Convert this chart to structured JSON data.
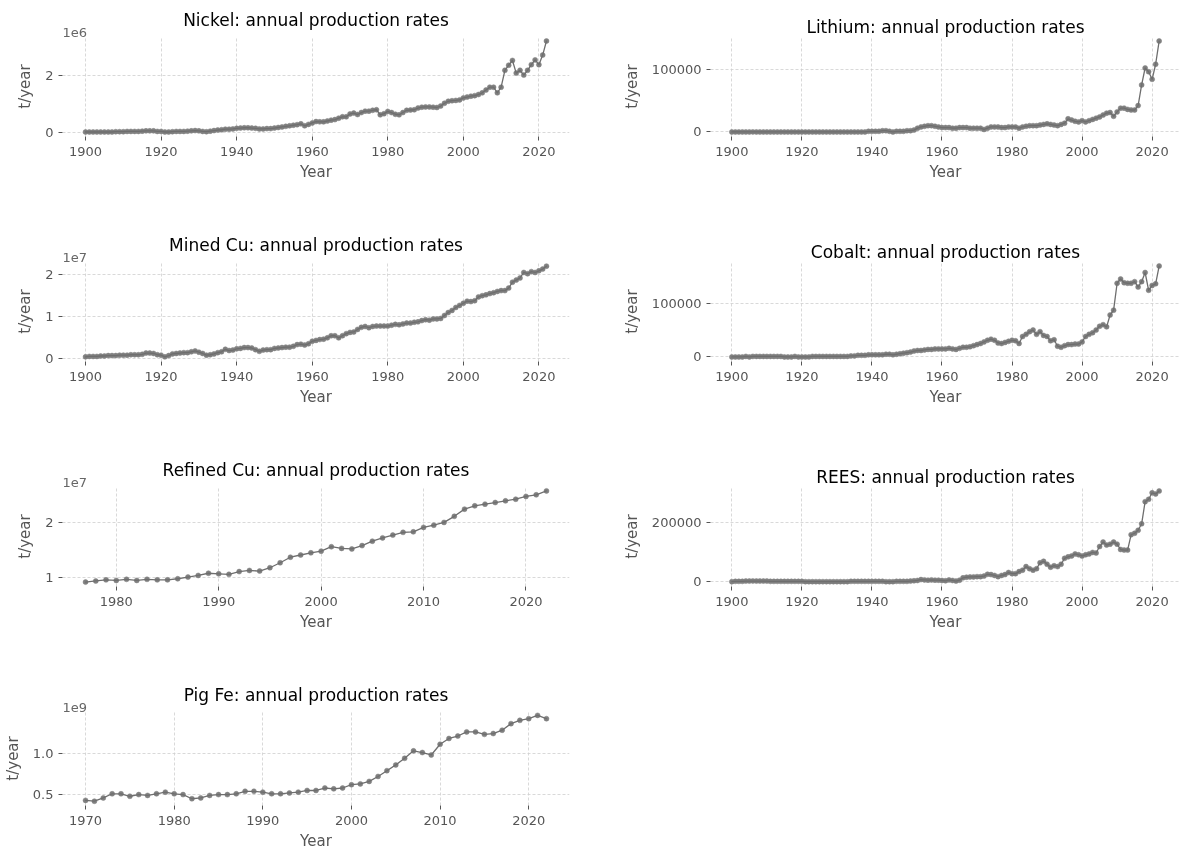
{
  "chart_data": [
    {
      "type": "line",
      "title": "Nickel: annual production rates",
      "xlabel": "Year",
      "ylabel": "t/year",
      "annotations": [
        "1e6"
      ],
      "marker": "circle",
      "grid": true,
      "xlim": [
        1893.9,
        2028.1
      ],
      "ylim": [
        -0.15,
        3.4
      ],
      "xticks": [
        1900,
        1920,
        1940,
        1960,
        1980,
        2000,
        2020
      ],
      "yticks": [
        0,
        2
      ],
      "x": [
        1900,
        1901,
        1902,
        1903,
        1904,
        1905,
        1906,
        1907,
        1908,
        1909,
        1910,
        1911,
        1912,
        1913,
        1914,
        1915,
        1916,
        1917,
        1918,
        1919,
        1920,
        1921,
        1922,
        1923,
        1924,
        1925,
        1926,
        1927,
        1928,
        1929,
        1930,
        1931,
        1932,
        1933,
        1934,
        1935,
        1936,
        1937,
        1938,
        1939,
        1940,
        1941,
        1942,
        1943,
        1944,
        1945,
        1946,
        1947,
        1948,
        1949,
        1950,
        1951,
        1952,
        1953,
        1954,
        1955,
        1956,
        1957,
        1958,
        1959,
        1960,
        1961,
        1962,
        1963,
        1964,
        1965,
        1966,
        1967,
        1968,
        1969,
        1970,
        1971,
        1972,
        1973,
        1974,
        1975,
        1976,
        1977,
        1978,
        1979,
        1980,
        1981,
        1982,
        1983,
        1984,
        1985,
        1986,
        1987,
        1988,
        1989,
        1990,
        1991,
        1992,
        1993,
        1994,
        1995,
        1996,
        1997,
        1998,
        1999,
        2000,
        2001,
        2002,
        2003,
        2004,
        2005,
        2006,
        2007,
        2008,
        2009,
        2010,
        2011,
        2012,
        2013,
        2014,
        2015,
        2016,
        2017,
        2018,
        2019,
        2020,
        2021,
        2022
      ],
      "series": [
        {
          "color": "#808080",
          "values": [
            0.01,
            0.01,
            0.01,
            0.01,
            0.01,
            0.01,
            0.01,
            0.01,
            0.02,
            0.02,
            0.02,
            0.03,
            0.03,
            0.03,
            0.03,
            0.04,
            0.05,
            0.05,
            0.05,
            0.03,
            0.03,
            0.01,
            0.01,
            0.02,
            0.03,
            0.03,
            0.03,
            0.04,
            0.05,
            0.06,
            0.05,
            0.03,
            0.02,
            0.04,
            0.06,
            0.08,
            0.09,
            0.11,
            0.11,
            0.12,
            0.14,
            0.15,
            0.16,
            0.16,
            0.15,
            0.14,
            0.12,
            0.12,
            0.13,
            0.13,
            0.15,
            0.17,
            0.19,
            0.21,
            0.23,
            0.25,
            0.27,
            0.3,
            0.23,
            0.28,
            0.33,
            0.38,
            0.37,
            0.37,
            0.4,
            0.43,
            0.45,
            0.5,
            0.55,
            0.55,
            0.65,
            0.68,
            0.63,
            0.7,
            0.75,
            0.75,
            0.78,
            0.8,
            0.62,
            0.66,
            0.74,
            0.7,
            0.64,
            0.62,
            0.7,
            0.78,
            0.79,
            0.8,
            0.86,
            0.89,
            0.9,
            0.9,
            0.89,
            0.88,
            0.93,
            1.03,
            1.1,
            1.12,
            1.13,
            1.15,
            1.22,
            1.25,
            1.28,
            1.3,
            1.34,
            1.4,
            1.5,
            1.6,
            1.6,
            1.4,
            1.6,
            2.2,
            2.38,
            2.55,
            2.1,
            2.2,
            2.03,
            2.2,
            2.4,
            2.57,
            2.4,
            2.74,
            3.24
          ]
        }
      ]
    },
    {
      "type": "line",
      "title": "Lithium: annual production rates",
      "xlabel": "Year",
      "ylabel": "t/year",
      "marker": "circle",
      "grid": true,
      "xlim": [
        1893.9,
        2028.1
      ],
      "ylim": [
        -7250,
        152250
      ],
      "xticks": [
        1900,
        1920,
        1940,
        1960,
        1980,
        2000,
        2020
      ],
      "yticks": [
        0,
        100000
      ],
      "x": [
        1900,
        1901,
        1902,
        1903,
        1904,
        1905,
        1906,
        1907,
        1908,
        1909,
        1910,
        1911,
        1912,
        1913,
        1914,
        1915,
        1916,
        1917,
        1918,
        1919,
        1920,
        1921,
        1922,
        1923,
        1924,
        1925,
        1926,
        1927,
        1928,
        1929,
        1930,
        1931,
        1932,
        1933,
        1934,
        1935,
        1936,
        1937,
        1938,
        1939,
        1940,
        1941,
        1942,
        1943,
        1944,
        1945,
        1946,
        1947,
        1948,
        1949,
        1950,
        1951,
        1952,
        1953,
        1954,
        1955,
        1956,
        1957,
        1958,
        1959,
        1960,
        1961,
        1962,
        1963,
        1964,
        1965,
        1966,
        1967,
        1968,
        1969,
        1970,
        1971,
        1972,
        1973,
        1974,
        1975,
        1976,
        1977,
        1978,
        1979,
        1980,
        1981,
        1982,
        1983,
        1984,
        1985,
        1986,
        1987,
        1988,
        1989,
        1990,
        1991,
        1992,
        1993,
        1994,
        1995,
        1996,
        1997,
        1998,
        1999,
        2000,
        2001,
        2002,
        2003,
        2004,
        2005,
        2006,
        2007,
        2008,
        2009,
        2010,
        2011,
        2012,
        2013,
        2014,
        2015,
        2016,
        2017,
        2018,
        2019,
        2020,
        2021,
        2022
      ],
      "series": [
        {
          "color": "#808080",
          "values": [
            0,
            0,
            0,
            0,
            0,
            0,
            0,
            0,
            0,
            0,
            0,
            0,
            0,
            0,
            0,
            0,
            0,
            0,
            0,
            0,
            0,
            0,
            0,
            0,
            0,
            0,
            0,
            0,
            0,
            0,
            0,
            0,
            0,
            0,
            0,
            0,
            0,
            0,
            0,
            1000,
            1000,
            1000,
            1000,
            2000,
            2000,
            1000,
            0,
            1000,
            1000,
            1000,
            2000,
            2000,
            3000,
            6000,
            8000,
            9000,
            10000,
            10000,
            9000,
            8000,
            7000,
            7000,
            7000,
            6000,
            6000,
            7000,
            7000,
            7000,
            6000,
            6000,
            6000,
            6000,
            4000,
            6000,
            8000,
            8000,
            8000,
            7000,
            7000,
            8000,
            8000,
            8000,
            6000,
            8000,
            9000,
            10000,
            10000,
            10000,
            11000,
            12000,
            13000,
            12000,
            11000,
            10000,
            12000,
            14000,
            21000,
            19000,
            17000,
            16000,
            18000,
            16000,
            18000,
            20000,
            22000,
            24000,
            27000,
            30000,
            31000,
            25000,
            32000,
            38000,
            38000,
            36000,
            35000,
            35000,
            42000,
            75000,
            102000,
            96000,
            84000,
            108000,
            145000
          ]
        }
      ]
    },
    {
      "type": "line",
      "title": "Mined Cu: annual production rates",
      "xlabel": "Year",
      "ylabel": "t/year",
      "annotations": [
        "1e7"
      ],
      "marker": "circle",
      "grid": true,
      "xlim": [
        1893.9,
        2028.1
      ],
      "ylim": [
        -0.06,
        2.31
      ],
      "xticks": [
        1900,
        1920,
        1940,
        1960,
        1980,
        2000,
        2020
      ],
      "yticks": [
        0,
        1,
        2
      ],
      "x": [
        1900,
        1901,
        1902,
        1903,
        1904,
        1905,
        1906,
        1907,
        1908,
        1909,
        1910,
        1911,
        1912,
        1913,
        1914,
        1915,
        1916,
        1917,
        1918,
        1919,
        1920,
        1921,
        1922,
        1923,
        1924,
        1925,
        1926,
        1927,
        1928,
        1929,
        1930,
        1931,
        1932,
        1933,
        1934,
        1935,
        1936,
        1937,
        1938,
        1939,
        1940,
        1941,
        1942,
        1943,
        1944,
        1945,
        1946,
        1947,
        1948,
        1949,
        1950,
        1951,
        1952,
        1953,
        1954,
        1955,
        1956,
        1957,
        1958,
        1959,
        1960,
        1961,
        1962,
        1963,
        1964,
        1965,
        1966,
        1967,
        1968,
        1969,
        1970,
        1971,
        1972,
        1973,
        1974,
        1975,
        1976,
        1977,
        1978,
        1979,
        1980,
        1981,
        1982,
        1983,
        1984,
        1985,
        1986,
        1987,
        1988,
        1989,
        1990,
        1991,
        1992,
        1993,
        1994,
        1995,
        1996,
        1997,
        1998,
        1999,
        2000,
        2001,
        2002,
        2003,
        2004,
        2005,
        2006,
        2007,
        2008,
        2009,
        2010,
        2011,
        2012,
        2013,
        2014,
        2015,
        2016,
        2017,
        2018,
        2019,
        2020,
        2021,
        2022
      ],
      "series": [
        {
          "color": "#808080",
          "values": [
            0.05,
            0.06,
            0.06,
            0.06,
            0.07,
            0.07,
            0.08,
            0.08,
            0.08,
            0.09,
            0.09,
            0.09,
            0.1,
            0.1,
            0.1,
            0.11,
            0.14,
            0.14,
            0.13,
            0.1,
            0.09,
            0.05,
            0.08,
            0.12,
            0.13,
            0.14,
            0.15,
            0.15,
            0.17,
            0.19,
            0.16,
            0.13,
            0.09,
            0.1,
            0.12,
            0.15,
            0.17,
            0.23,
            0.2,
            0.21,
            0.24,
            0.25,
            0.27,
            0.27,
            0.26,
            0.22,
            0.18,
            0.21,
            0.22,
            0.22,
            0.25,
            0.26,
            0.27,
            0.28,
            0.28,
            0.3,
            0.34,
            0.35,
            0.33,
            0.36,
            0.42,
            0.44,
            0.46,
            0.47,
            0.5,
            0.55,
            0.55,
            0.5,
            0.55,
            0.6,
            0.63,
            0.64,
            0.7,
            0.75,
            0.77,
            0.74,
            0.77,
            0.78,
            0.78,
            0.78,
            0.78,
            0.8,
            0.82,
            0.81,
            0.83,
            0.85,
            0.85,
            0.87,
            0.88,
            0.91,
            0.93,
            0.92,
            0.95,
            0.95,
            0.96,
            1.03,
            1.1,
            1.15,
            1.22,
            1.27,
            1.32,
            1.37,
            1.36,
            1.38,
            1.47,
            1.5,
            1.52,
            1.55,
            1.57,
            1.6,
            1.62,
            1.62,
            1.68,
            1.82,
            1.87,
            1.92,
            2.05,
            2.02,
            2.07,
            2.05,
            2.09,
            2.13,
            2.2
          ]
        }
      ]
    },
    {
      "type": "line",
      "title": "Cobalt: annual production rates",
      "xlabel": "Year",
      "ylabel": "t/year",
      "marker": "circle",
      "grid": true,
      "xlim": [
        1893.9,
        2028.1
      ],
      "ylim": [
        -8450,
        177450
      ],
      "xticks": [
        1900,
        1920,
        1940,
        1960,
        1980,
        2000,
        2020
      ],
      "yticks": [
        0,
        100000
      ],
      "x": [
        1900,
        1901,
        1902,
        1903,
        1904,
        1905,
        1906,
        1907,
        1908,
        1909,
        1910,
        1911,
        1912,
        1913,
        1914,
        1915,
        1916,
        1917,
        1918,
        1919,
        1920,
        1921,
        1922,
        1923,
        1924,
        1925,
        1926,
        1927,
        1928,
        1929,
        1930,
        1931,
        1932,
        1933,
        1934,
        1935,
        1936,
        1937,
        1938,
        1939,
        1940,
        1941,
        1942,
        1943,
        1944,
        1945,
        1946,
        1947,
        1948,
        1949,
        1950,
        1951,
        1952,
        1953,
        1954,
        1955,
        1956,
        1957,
        1958,
        1959,
        1960,
        1961,
        1962,
        1963,
        1964,
        1965,
        1966,
        1967,
        1968,
        1969,
        1970,
        1971,
        1972,
        1973,
        1974,
        1975,
        1976,
        1977,
        1978,
        1979,
        1980,
        1981,
        1982,
        1983,
        1984,
        1985,
        1986,
        1987,
        1988,
        1989,
        1990,
        1991,
        1992,
        1993,
        1994,
        1995,
        1996,
        1997,
        1998,
        1999,
        2000,
        2001,
        2002,
        2003,
        2004,
        2005,
        2006,
        2007,
        2008,
        2009,
        2010,
        2011,
        2012,
        2013,
        2014,
        2015,
        2016,
        2017,
        2018,
        2019,
        2020,
        2021,
        2022
      ],
      "series": [
        {
          "color": "#808080",
          "values": [
            0,
            0,
            0,
            0,
            1000,
            0,
            1000,
            1000,
            1000,
            1000,
            1000,
            1000,
            1000,
            1000,
            1000,
            0,
            0,
            0,
            1000,
            0,
            0,
            0,
            0,
            1000,
            1000,
            1000,
            1000,
            1000,
            1000,
            1000,
            1000,
            1000,
            1000,
            1000,
            2000,
            2000,
            3000,
            3000,
            3000,
            4000,
            4000,
            4000,
            4000,
            4000,
            5000,
            5000,
            4000,
            5000,
            6000,
            7000,
            8000,
            9000,
            11000,
            12000,
            12000,
            13000,
            14000,
            14000,
            15000,
            15000,
            15000,
            15000,
            16000,
            15000,
            14000,
            16000,
            18000,
            18000,
            19000,
            21000,
            23000,
            25000,
            28000,
            31000,
            33000,
            31000,
            26000,
            25000,
            27000,
            29000,
            31000,
            30000,
            25000,
            38000,
            42000,
            47000,
            50000,
            42000,
            47000,
            40000,
            38000,
            30000,
            32000,
            20000,
            18000,
            21000,
            23000,
            23000,
            24000,
            24000,
            28000,
            38000,
            42000,
            45000,
            50000,
            57000,
            60000,
            56000,
            78000,
            87000,
            137000,
            145000,
            138000,
            137000,
            137000,
            140000,
            130000,
            140000,
            157000,
            124000,
            133000,
            136000,
            169000
          ]
        }
      ]
    },
    {
      "type": "line",
      "title": "Refined Cu: annual production rates",
      "xlabel": "Year",
      "ylabel": "t/year",
      "annotations": [
        "1e7"
      ],
      "marker": "circle",
      "grid": true,
      "xlim": [
        1974.75,
        2024.25
      ],
      "ylim": [
        0.84,
        2.65
      ],
      "xticks": [
        1980,
        1990,
        2000,
        2010,
        2020
      ],
      "yticks": [
        1,
        2
      ],
      "x": [
        1977,
        1978,
        1979,
        1980,
        1981,
        1982,
        1983,
        1984,
        1985,
        1986,
        1987,
        1988,
        1989,
        1990,
        1991,
        1992,
        1993,
        1994,
        1995,
        1996,
        1997,
        1998,
        1999,
        2000,
        2001,
        2002,
        2003,
        2004,
        2005,
        2006,
        2007,
        2008,
        2009,
        2010,
        2011,
        2012,
        2013,
        2014,
        2015,
        2016,
        2017,
        2018,
        2019,
        2020,
        2021,
        2022
      ],
      "series": [
        {
          "color": "#808080",
          "values": [
            0.92,
            0.94,
            0.96,
            0.95,
            0.97,
            0.95,
            0.97,
            0.96,
            0.96,
            0.98,
            1.01,
            1.04,
            1.08,
            1.07,
            1.06,
            1.11,
            1.13,
            1.12,
            1.18,
            1.27,
            1.37,
            1.41,
            1.45,
            1.48,
            1.56,
            1.53,
            1.52,
            1.58,
            1.66,
            1.72,
            1.77,
            1.82,
            1.83,
            1.91,
            1.95,
            2.0,
            2.11,
            2.24,
            2.3,
            2.33,
            2.36,
            2.39,
            2.42,
            2.47,
            2.5,
            2.57
          ]
        }
      ]
    },
    {
      "type": "line",
      "title": "REES: annual production rates",
      "xlabel": "Year",
      "ylabel": "t/year",
      "marker": "circle",
      "grid": true,
      "xlim": [
        1893.9,
        2028.1
      ],
      "ylim": [
        -15400,
        323400
      ],
      "xticks": [
        1900,
        1920,
        1940,
        1960,
        1980,
        2000,
        2020
      ],
      "yticks": [
        0,
        200000
      ],
      "x": [
        1900,
        1901,
        1902,
        1903,
        1904,
        1905,
        1906,
        1907,
        1908,
        1909,
        1910,
        1911,
        1912,
        1913,
        1914,
        1915,
        1916,
        1917,
        1918,
        1919,
        1920,
        1921,
        1922,
        1923,
        1924,
        1925,
        1926,
        1927,
        1928,
        1929,
        1930,
        1931,
        1932,
        1933,
        1934,
        1935,
        1936,
        1937,
        1938,
        1939,
        1940,
        1941,
        1942,
        1943,
        1944,
        1945,
        1946,
        1947,
        1948,
        1949,
        1950,
        1951,
        1952,
        1953,
        1954,
        1955,
        1956,
        1957,
        1958,
        1959,
        1960,
        1961,
        1962,
        1963,
        1964,
        1965,
        1966,
        1967,
        1968,
        1969,
        1970,
        1971,
        1972,
        1973,
        1974,
        1975,
        1976,
        1977,
        1978,
        1979,
        1980,
        1981,
        1982,
        1983,
        1984,
        1985,
        1986,
        1987,
        1988,
        1989,
        1990,
        1991,
        1992,
        1993,
        1994,
        1995,
        1996,
        1997,
        1998,
        1999,
        2000,
        2001,
        2002,
        2003,
        2004,
        2005,
        2006,
        2007,
        2008,
        2009,
        2010,
        2011,
        2012,
        2013,
        2014,
        2015,
        2016,
        2017,
        2018,
        2019,
        2020,
        2021,
        2022
      ],
      "series": [
        {
          "color": "#808080",
          "values": [
            1000,
            2000,
            2000,
            2000,
            3000,
            3000,
            3000,
            3000,
            3000,
            3000,
            3000,
            2000,
            2000,
            2000,
            2000,
            2000,
            2000,
            2000,
            2000,
            2000,
            2000,
            1000,
            1000,
            1000,
            1000,
            1000,
            1000,
            1000,
            1000,
            1000,
            1000,
            1000,
            1000,
            1000,
            2000,
            2000,
            2000,
            2000,
            2000,
            2000,
            2000,
            2000,
            2000,
            2000,
            1000,
            1000,
            1000,
            2000,
            2000,
            2000,
            2000,
            3000,
            4000,
            5000,
            8000,
            7000,
            6000,
            7000,
            6000,
            6000,
            5000,
            4000,
            7000,
            5000,
            3000,
            6000,
            14000,
            16000,
            17000,
            17000,
            18000,
            18000,
            20000,
            26000,
            25000,
            22000,
            18000,
            22000,
            25000,
            32000,
            28000,
            28000,
            35000,
            40000,
            52000,
            45000,
            40000,
            45000,
            65000,
            70000,
            60000,
            50000,
            55000,
            52000,
            60000,
            80000,
            85000,
            88000,
            95000,
            92000,
            88000,
            92000,
            95000,
            100000,
            98000,
            120000,
            135000,
            125000,
            128000,
            135000,
            128000,
            110000,
            108000,
            108000,
            160000,
            165000,
            175000,
            197000,
            272000,
            280000,
            302000,
            298000,
            308000
          ]
        }
      ]
    },
    {
      "type": "line",
      "title": "Pig Fe: annual production rates",
      "xlabel": "Year",
      "ylabel": "t/year",
      "annotations": [
        "1e9"
      ],
      "marker": "circle",
      "grid": true,
      "xlim": [
        1967.4,
        2024.6
      ],
      "ylim": [
        0.368,
        1.507
      ],
      "xticks": [
        1970,
        1980,
        1990,
        2000,
        2010,
        2020
      ],
      "yticks": [
        0.5,
        {
          "value": 1,
          "label": "1.0"
        }
      ],
      "x": [
        1970,
        1971,
        1972,
        1973,
        1974,
        1975,
        1976,
        1977,
        1978,
        1979,
        1980,
        1981,
        1982,
        1983,
        1984,
        1985,
        1986,
        1987,
        1988,
        1989,
        1990,
        1991,
        1992,
        1993,
        1994,
        1995,
        1996,
        1997,
        1998,
        1999,
        2000,
        2001,
        2002,
        2003,
        2004,
        2005,
        2006,
        2007,
        2008,
        2009,
        2010,
        2011,
        2012,
        2013,
        2014,
        2015,
        2016,
        2017,
        2018,
        2019,
        2020,
        2021,
        2022
      ],
      "series": [
        {
          "color": "#808080",
          "values": [
            0.43,
            0.42,
            0.46,
            0.51,
            0.51,
            0.48,
            0.5,
            0.49,
            0.51,
            0.53,
            0.51,
            0.5,
            0.45,
            0.46,
            0.49,
            0.5,
            0.5,
            0.51,
            0.54,
            0.54,
            0.53,
            0.51,
            0.51,
            0.52,
            0.53,
            0.55,
            0.55,
            0.58,
            0.57,
            0.58,
            0.62,
            0.63,
            0.66,
            0.72,
            0.79,
            0.86,
            0.94,
            1.03,
            1.01,
            0.98,
            1.11,
            1.18,
            1.21,
            1.26,
            1.26,
            1.23,
            1.24,
            1.28,
            1.36,
            1.4,
            1.42,
            1.46,
            1.42
          ]
        }
      ]
    }
  ]
}
